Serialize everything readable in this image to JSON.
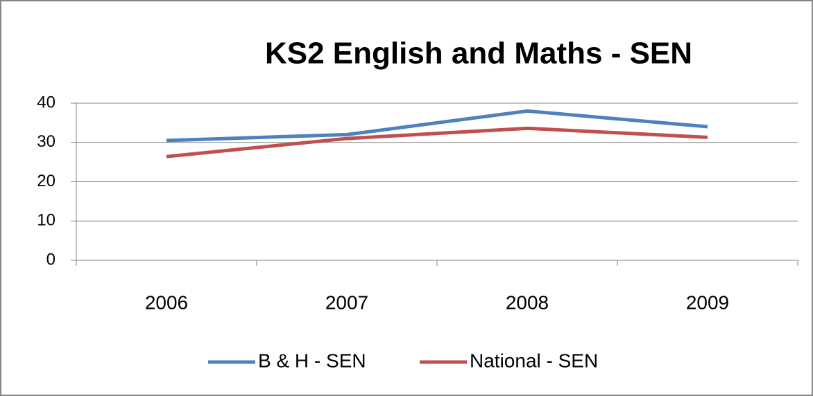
{
  "chart_data": {
    "type": "line",
    "title": "KS2 English and Maths - SEN",
    "categories": [
      "2006",
      "2007",
      "2008",
      "2009"
    ],
    "series": [
      {
        "name": "B & H - SEN",
        "color": "#4f81bd",
        "values": [
          30.5,
          32,
          38,
          34
        ]
      },
      {
        "name": "National - SEN",
        "color": "#c0504d",
        "values": [
          26.4,
          31,
          33.6,
          31.3
        ]
      }
    ],
    "ylim": [
      0,
      40
    ],
    "yticks": [
      0,
      10,
      20,
      30,
      40
    ],
    "grid": true,
    "legend": "bottom"
  }
}
